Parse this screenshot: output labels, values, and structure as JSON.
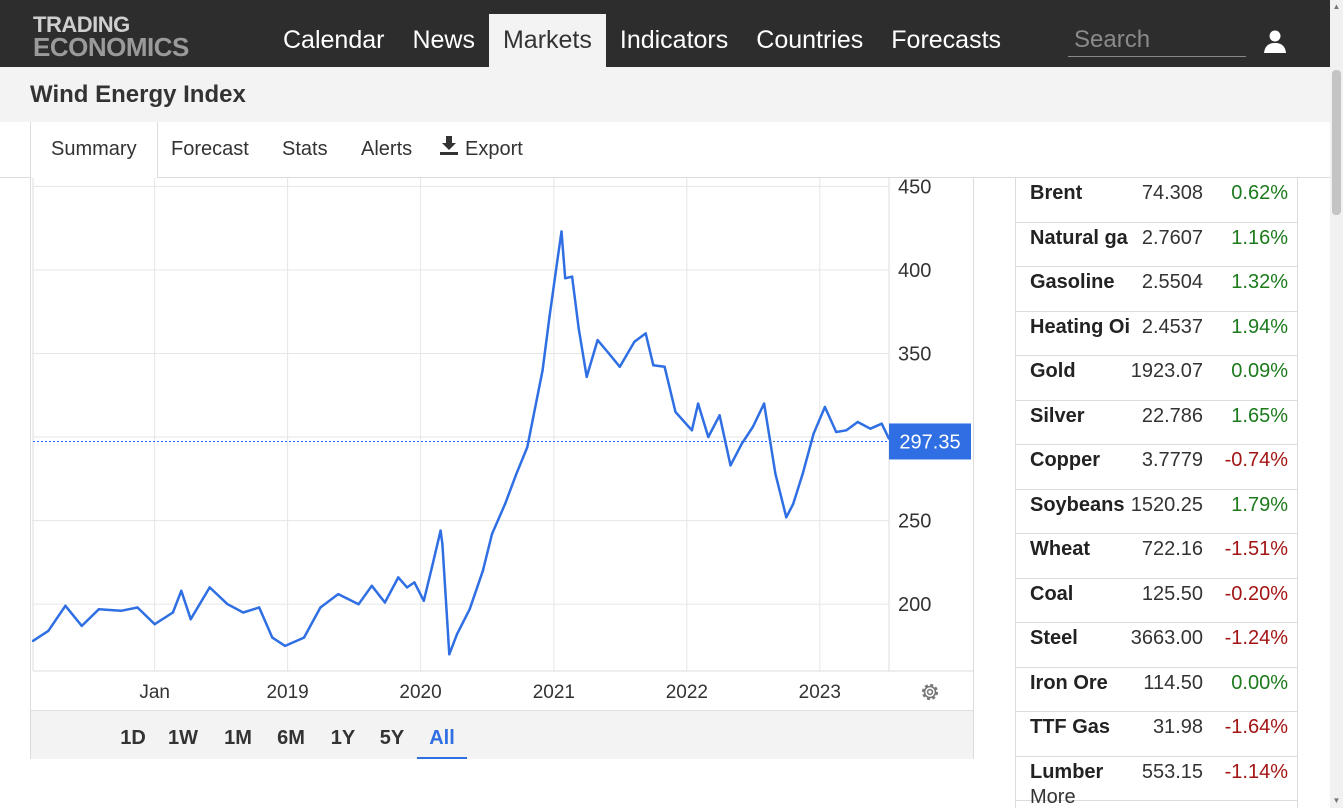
{
  "logo": {
    "line1": "TRADING",
    "line2": "ECONOMICS"
  },
  "nav": {
    "items": [
      {
        "label": "Calendar"
      },
      {
        "label": "News"
      },
      {
        "label": "Markets"
      },
      {
        "label": "Indicators"
      },
      {
        "label": "Countries"
      },
      {
        "label": "Forecasts"
      }
    ],
    "active": "Markets"
  },
  "search": {
    "placeholder": "Search"
  },
  "page": {
    "title": "Wind Energy Index"
  },
  "tabs": {
    "items": [
      {
        "label": "Summary"
      },
      {
        "label": "Forecast"
      },
      {
        "label": "Stats"
      },
      {
        "label": "Alerts"
      },
      {
        "label": "Export"
      }
    ],
    "active": "Summary"
  },
  "chart_data": {
    "type": "line",
    "title": "",
    "xlabel": "",
    "ylabel": "",
    "ylim": [
      160,
      455
    ],
    "y_ticks": [
      200,
      250,
      300,
      350,
      400,
      450
    ],
    "y_tick_labels": [
      "200",
      "250",
      "350",
      "400",
      "450"
    ],
    "x_tick_labels": [
      "Jan",
      "2019",
      "2020",
      "2021",
      "2022",
      "2023"
    ],
    "x_tick_dates": [
      "2018-01-01",
      "2019-01-01",
      "2020-01-01",
      "2021-01-01",
      "2022-01-01",
      "2023-01-01"
    ],
    "x_range": [
      "2017-02-01",
      "2023-07-10"
    ],
    "last_value": "297.35",
    "series": [
      {
        "color": "#2f6fe3",
        "points": [
          [
            "2017-02-01",
            178
          ],
          [
            "2017-03-15",
            184
          ],
          [
            "2017-05-01",
            199
          ],
          [
            "2017-06-15",
            187
          ],
          [
            "2017-08-01",
            197
          ],
          [
            "2017-10-01",
            196
          ],
          [
            "2017-11-15",
            198
          ],
          [
            "2018-01-01",
            188
          ],
          [
            "2018-02-20",
            195
          ],
          [
            "2018-03-15",
            208
          ],
          [
            "2018-04-10",
            191
          ],
          [
            "2018-06-01",
            210
          ],
          [
            "2018-07-20",
            200
          ],
          [
            "2018-09-01",
            195
          ],
          [
            "2018-10-15",
            198
          ],
          [
            "2018-11-20",
            180
          ],
          [
            "2018-12-25",
            175
          ],
          [
            "2019-02-15",
            180
          ],
          [
            "2019-04-01",
            198
          ],
          [
            "2019-05-20",
            206
          ],
          [
            "2019-07-15",
            200
          ],
          [
            "2019-08-20",
            211
          ],
          [
            "2019-09-25",
            201
          ],
          [
            "2019-11-01",
            216
          ],
          [
            "2019-11-25",
            210
          ],
          [
            "2019-12-15",
            213
          ],
          [
            "2020-01-10",
            202
          ],
          [
            "2020-02-01",
            222
          ],
          [
            "2020-02-25",
            244
          ],
          [
            "2020-03-01",
            236
          ],
          [
            "2020-03-20",
            170
          ],
          [
            "2020-04-10",
            182
          ],
          [
            "2020-05-15",
            197
          ],
          [
            "2020-06-20",
            220
          ],
          [
            "2020-07-15",
            242
          ],
          [
            "2020-08-20",
            260
          ],
          [
            "2020-09-20",
            278
          ],
          [
            "2020-10-20",
            294
          ],
          [
            "2020-12-01",
            340
          ],
          [
            "2020-12-20",
            372
          ],
          [
            "2021-01-10",
            405
          ],
          [
            "2021-01-22",
            423
          ],
          [
            "2021-02-01",
            395
          ],
          [
            "2021-02-20",
            396
          ],
          [
            "2021-03-10",
            365
          ],
          [
            "2021-04-01",
            336
          ],
          [
            "2021-05-01",
            358
          ],
          [
            "2021-06-01",
            350
          ],
          [
            "2021-07-01",
            342
          ],
          [
            "2021-08-10",
            357
          ],
          [
            "2021-09-10",
            362
          ],
          [
            "2021-10-01",
            343
          ],
          [
            "2021-11-01",
            342
          ],
          [
            "2021-12-01",
            315
          ],
          [
            "2022-01-15",
            304
          ],
          [
            "2022-02-01",
            320
          ],
          [
            "2022-03-01",
            300
          ],
          [
            "2022-04-01",
            313
          ],
          [
            "2022-05-01",
            283
          ],
          [
            "2022-06-01",
            296
          ],
          [
            "2022-07-01",
            306
          ],
          [
            "2022-08-01",
            320
          ],
          [
            "2022-09-01",
            278
          ],
          [
            "2022-10-01",
            252
          ],
          [
            "2022-10-20",
            260
          ],
          [
            "2022-11-15",
            278
          ],
          [
            "2022-12-15",
            302
          ],
          [
            "2023-01-15",
            318
          ],
          [
            "2023-02-15",
            303
          ],
          [
            "2023-03-15",
            304
          ],
          [
            "2023-04-15",
            309
          ],
          [
            "2023-05-20",
            305
          ],
          [
            "2023-06-20",
            308
          ],
          [
            "2023-07-10",
            299
          ]
        ]
      }
    ]
  },
  "range_buttons": {
    "items": [
      {
        "label": "1D"
      },
      {
        "label": "1W"
      },
      {
        "label": "1M"
      },
      {
        "label": "6M"
      },
      {
        "label": "1Y"
      },
      {
        "label": "5Y"
      },
      {
        "label": "All"
      }
    ],
    "active": "All"
  },
  "commodities": {
    "rows": [
      {
        "name": "Brent",
        "price": "74.308",
        "change": "0.62%",
        "dir": "pos"
      },
      {
        "name": "Natural ga",
        "price": "2.7607",
        "change": "1.16%",
        "dir": "pos"
      },
      {
        "name": "Gasoline",
        "price": "2.5504",
        "change": "1.32%",
        "dir": "pos"
      },
      {
        "name": "Heating Oi",
        "price": "2.4537",
        "change": "1.94%",
        "dir": "pos"
      },
      {
        "name": "Gold",
        "price": "1923.07",
        "change": "0.09%",
        "dir": "pos"
      },
      {
        "name": "Silver",
        "price": "22.786",
        "change": "1.65%",
        "dir": "pos"
      },
      {
        "name": "Copper",
        "price": "3.7779",
        "change": "-0.74%",
        "dir": "neg"
      },
      {
        "name": "Soybeans",
        "price": "1520.25",
        "change": "1.79%",
        "dir": "pos"
      },
      {
        "name": "Wheat",
        "price": "722.16",
        "change": "-1.51%",
        "dir": "neg"
      },
      {
        "name": "Coal",
        "price": "125.50",
        "change": "-0.20%",
        "dir": "neg"
      },
      {
        "name": "Steel",
        "price": "3663.00",
        "change": "-1.24%",
        "dir": "neg"
      },
      {
        "name": "Iron Ore",
        "price": "114.50",
        "change": "0.00%",
        "dir": "pos"
      },
      {
        "name": "TTF Gas",
        "price": "31.98",
        "change": "-1.64%",
        "dir": "neg"
      },
      {
        "name": "Lumber",
        "price": "553.15",
        "change": "-1.14%",
        "dir": "neg"
      }
    ],
    "more_label": "More"
  },
  "colors": {
    "line": "#2f6fe3",
    "positive": "#1c7a1c",
    "negative": "#a31515",
    "topbar": "#2d2d2d"
  }
}
